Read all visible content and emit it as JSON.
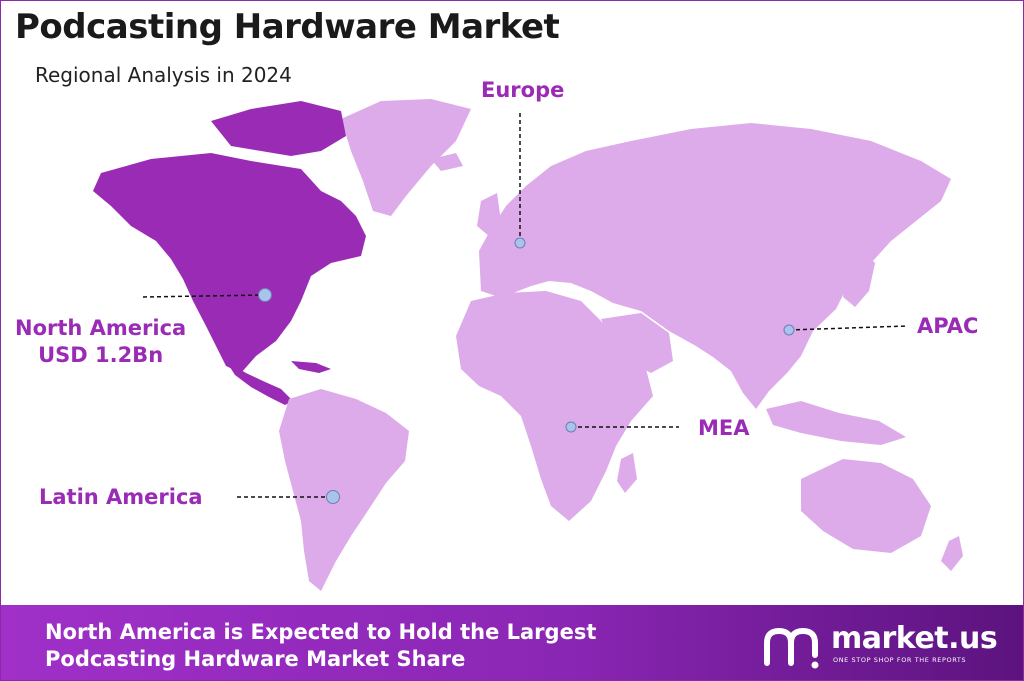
{
  "header": {
    "title": "Podcasting Hardware Market",
    "subtitle": "Regional Analysis in 2024"
  },
  "colors": {
    "highlight_region": "#9a2bb5",
    "other_regions": "#ddaaea",
    "label_text": "#9a2bb5",
    "marker": "#a9c3ea",
    "banner": "#8a26b4"
  },
  "regions": {
    "north_america": {
      "name": "North America",
      "value": "USD 1.2Bn",
      "highlighted": true
    },
    "europe": {
      "name": "Europe"
    },
    "apac": {
      "name": "APAC"
    },
    "mea": {
      "name": "MEA"
    },
    "latin_america": {
      "name": "Latin America"
    }
  },
  "footer": {
    "line1": "North America is Expected to Hold the Largest",
    "line2": "Podcasting Hardware Market Share",
    "brand": "market.us",
    "tagline": "ONE STOP SHOP FOR THE REPORTS",
    "logo_icon": "market-us-logo-icon"
  }
}
